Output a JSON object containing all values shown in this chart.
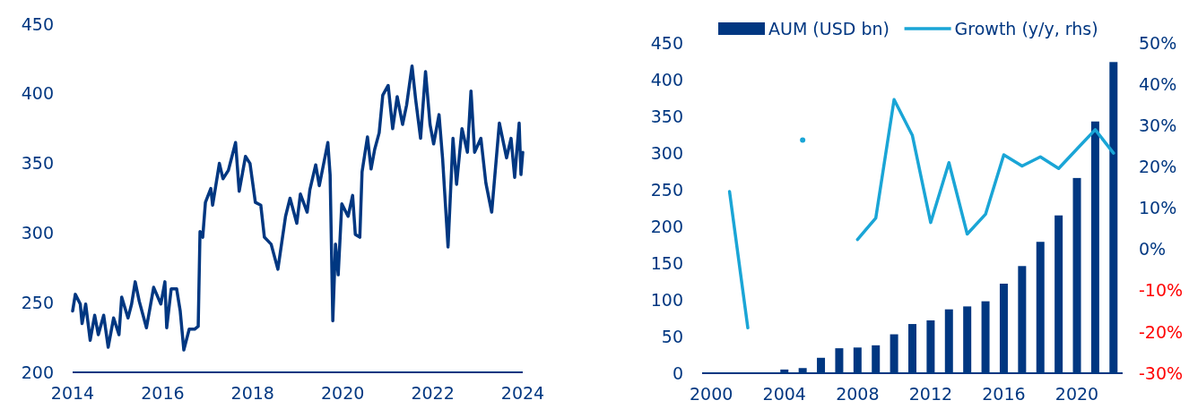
{
  "chart_data": [
    {
      "type": "line",
      "xlim": [
        2014,
        2024
      ],
      "xticks": [
        2014,
        2016,
        2018,
        2020,
        2022,
        2024
      ],
      "ylim": [
        200,
        450
      ],
      "yticks": [
        200,
        250,
        300,
        350,
        400,
        450
      ],
      "series": [
        {
          "color": "#003781",
          "x": [
            2014.0,
            2014.06,
            2014.17,
            2014.21,
            2014.29,
            2014.39,
            2014.49,
            2014.57,
            2014.69,
            2014.79,
            2014.91,
            2015.03,
            2015.09,
            2015.23,
            2015.31,
            2015.39,
            2015.48,
            2015.64,
            2015.8,
            2015.96,
            2016.05,
            2016.09,
            2016.19,
            2016.31,
            2016.39,
            2016.47,
            2016.59,
            2016.71,
            2016.79,
            2016.83,
            2016.89,
            2016.95,
            2017.07,
            2017.11,
            2017.26,
            2017.34,
            2017.46,
            2017.62,
            2017.7,
            2017.84,
            2017.94,
            2018.06,
            2018.18,
            2018.26,
            2018.41,
            2018.56,
            2018.73,
            2018.83,
            2018.98,
            2019.06,
            2019.21,
            2019.27,
            2019.4,
            2019.48,
            2019.67,
            2019.72,
            2019.78,
            2019.84,
            2019.9,
            2019.98,
            2020.12,
            2020.22,
            2020.28,
            2020.38,
            2020.43,
            2020.55,
            2020.63,
            2020.71,
            2020.81,
            2020.89,
            2021.01,
            2021.11,
            2021.21,
            2021.33,
            2021.42,
            2021.54,
            2021.62,
            2021.73,
            2021.84,
            2021.94,
            2022.02,
            2022.14,
            2022.22,
            2022.34,
            2022.45,
            2022.53,
            2022.65,
            2022.77,
            2022.85,
            2022.93,
            2023.07,
            2023.18,
            2023.31,
            2023.48,
            2023.64,
            2023.74,
            2023.82,
            2023.92,
            2023.96,
            2024.0
          ],
          "values": [
            244,
            256,
            249,
            235,
            249,
            223,
            241,
            227,
            241,
            218,
            239,
            227,
            254,
            239,
            249,
            265,
            251,
            232,
            261,
            249,
            265,
            232,
            260,
            260,
            244,
            216,
            231,
            231,
            233,
            301,
            297,
            322,
            332,
            320,
            350,
            339,
            345,
            365,
            330,
            355,
            350,
            322,
            320,
            297,
            292,
            274,
            312,
            325,
            307,
            328,
            315,
            331,
            349,
            334,
            365,
            342,
            237,
            292,
            270,
            321,
            312,
            327,
            299,
            297,
            344,
            369,
            346,
            360,
            372,
            399,
            406,
            375,
            398,
            378,
            392,
            420,
            396,
            368,
            416,
            378,
            364,
            385,
            353,
            290,
            368,
            335,
            375,
            358,
            402,
            358,
            368,
            336,
            315,
            379,
            354,
            368,
            340,
            379,
            342,
            358
          ]
        }
      ]
    },
    {
      "type": "bar",
      "xlim": [
        1999.5,
        2022.5
      ],
      "xticks": [
        2000,
        2004,
        2008,
        2012,
        2016,
        2020
      ],
      "ylim": [
        0,
        450
      ],
      "yticks": [
        0,
        50,
        100,
        150,
        200,
        250,
        300,
        350,
        400,
        450
      ],
      "y2lim": [
        -30,
        50
      ],
      "y2ticks": [
        {
          "value": -30,
          "label": "-30%"
        },
        {
          "value": -20,
          "label": "-20%"
        },
        {
          "value": -10,
          "label": "-10%"
        },
        {
          "value": 0,
          "label": "0%"
        },
        {
          "value": 10,
          "label": "10%"
        },
        {
          "value": 20,
          "label": "20%"
        },
        {
          "value": 30,
          "label": "30%"
        },
        {
          "value": 40,
          "label": "40%"
        },
        {
          "value": 50,
          "label": "50%"
        }
      ],
      "legend": "top",
      "x": [
        2000,
        2001,
        2002,
        2003,
        2004,
        2005,
        2006,
        2007,
        2008,
        2009,
        2010,
        2011,
        2012,
        2013,
        2014,
        2015,
        2016,
        2017,
        2018,
        2019,
        2020,
        2021,
        2022
      ],
      "series": [
        {
          "name": "AUM (USD bn)",
          "color": "#003781",
          "values": [
            0,
            0,
            0,
            1,
            5,
            7,
            21,
            34,
            35,
            38,
            53,
            67,
            72,
            87,
            91,
            98,
            122,
            146,
            179,
            215,
            266,
            343,
            424
          ]
        },
        {
          "name": "Growth (y/y, rhs)",
          "type": "line",
          "axis": "y2",
          "color": "#1aa5d6",
          "values": [
            null,
            14,
            -19,
            null,
            null,
            26.5,
            null,
            null,
            2.4,
            7.6,
            36.3,
            27.6,
            6.5,
            21,
            3.7,
            8.5,
            22.9,
            20.2,
            22.4,
            19.6,
            24.3,
            29,
            23.3
          ]
        }
      ]
    }
  ]
}
